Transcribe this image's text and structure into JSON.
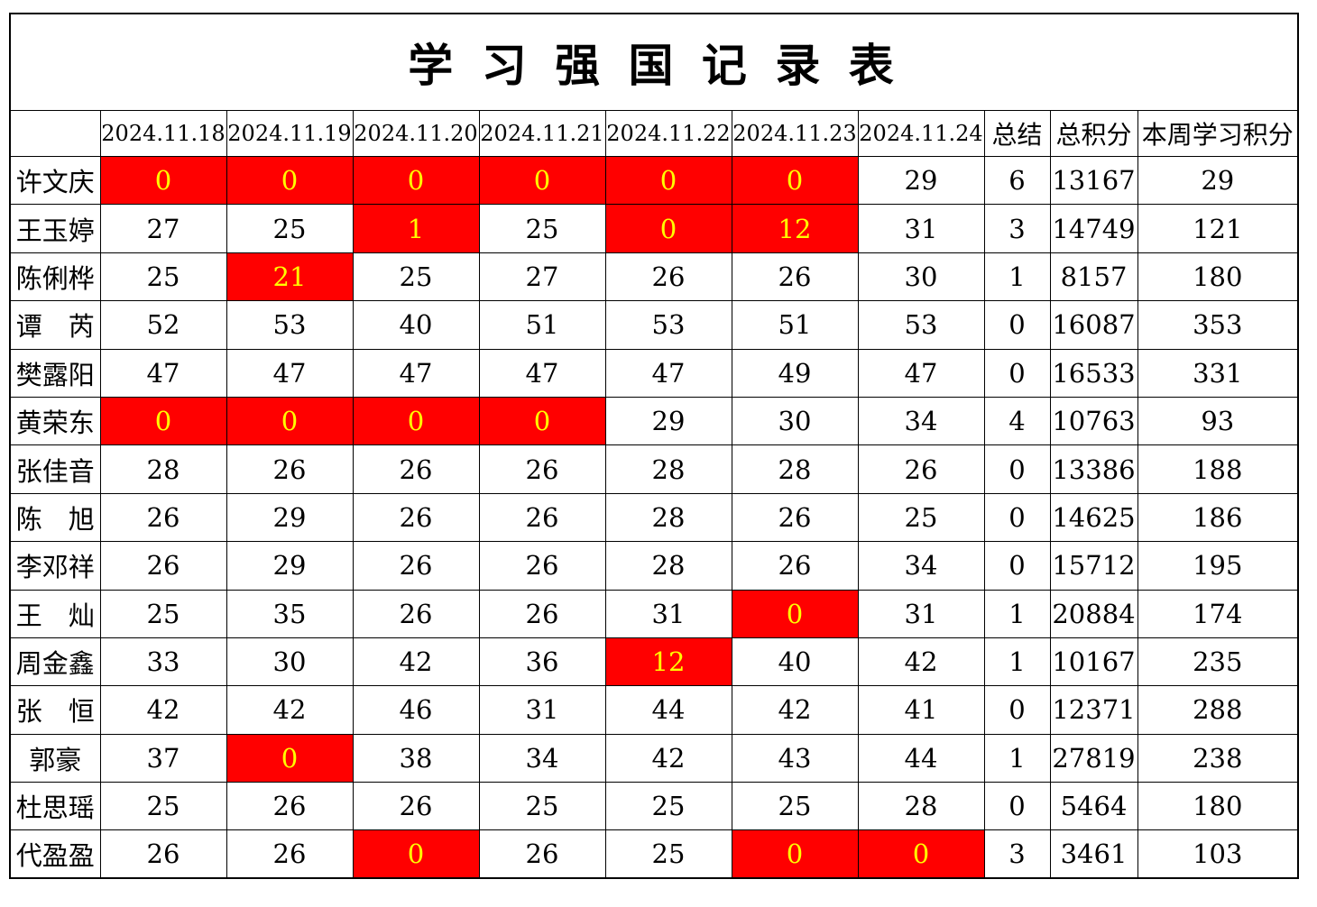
{
  "title": "学 习 强 国 记 录 表",
  "colors": {
    "highlight_background": "#FF0000",
    "highlight_text": "#FFFF00",
    "summary_text": "#FF0000",
    "body_text": "#000000",
    "grid_border": "#000000"
  },
  "table": {
    "corner_label": "",
    "date_headers": [
      "2024.11.18",
      "2024.11.19",
      "2024.11.20",
      "2024.11.21",
      "2024.11.22",
      "2024.11.23",
      "2024.11.24"
    ],
    "summary_headers": [
      "总结",
      "总积分",
      "本周学习积分"
    ],
    "rows": [
      {
        "name": "许文庆",
        "days": [
          0,
          0,
          0,
          0,
          0,
          0,
          29
        ],
        "red": [
          1,
          1,
          1,
          1,
          1,
          1,
          0
        ],
        "sum": 6,
        "total": 13167,
        "week": 29
      },
      {
        "name": "王玉婷",
        "days": [
          27,
          25,
          1,
          25,
          0,
          12,
          31
        ],
        "red": [
          0,
          0,
          1,
          0,
          1,
          1,
          0
        ],
        "sum": 3,
        "total": 14749,
        "week": 121
      },
      {
        "name": "陈俐桦",
        "days": [
          25,
          21,
          25,
          27,
          26,
          26,
          30
        ],
        "red": [
          0,
          1,
          0,
          0,
          0,
          0,
          0
        ],
        "sum": 1,
        "total": 8157,
        "week": 180
      },
      {
        "name": "谭　芮",
        "days": [
          52,
          53,
          40,
          51,
          53,
          51,
          53
        ],
        "red": [
          0,
          0,
          0,
          0,
          0,
          0,
          0
        ],
        "sum": 0,
        "total": 16087,
        "week": 353
      },
      {
        "name": "樊露阳",
        "days": [
          47,
          47,
          47,
          47,
          47,
          49,
          47
        ],
        "red": [
          0,
          0,
          0,
          0,
          0,
          0,
          0
        ],
        "sum": 0,
        "total": 16533,
        "week": 331
      },
      {
        "name": "黄荣东",
        "days": [
          0,
          0,
          0,
          0,
          29,
          30,
          34
        ],
        "red": [
          1,
          1,
          1,
          1,
          0,
          0,
          0
        ],
        "sum": 4,
        "total": 10763,
        "week": 93
      },
      {
        "name": "张佳音",
        "days": [
          28,
          26,
          26,
          26,
          28,
          28,
          26
        ],
        "red": [
          0,
          0,
          0,
          0,
          0,
          0,
          0
        ],
        "sum": 0,
        "total": 13386,
        "week": 188
      },
      {
        "name": "陈　旭",
        "days": [
          26,
          29,
          26,
          26,
          28,
          26,
          25
        ],
        "red": [
          0,
          0,
          0,
          0,
          0,
          0,
          0
        ],
        "sum": 0,
        "total": 14625,
        "week": 186
      },
      {
        "name": "李邓祥",
        "days": [
          26,
          29,
          26,
          26,
          28,
          26,
          34
        ],
        "red": [
          0,
          0,
          0,
          0,
          0,
          0,
          0
        ],
        "sum": 0,
        "total": 15712,
        "week": 195
      },
      {
        "name": "王　灿",
        "days": [
          25,
          35,
          26,
          26,
          31,
          0,
          31
        ],
        "red": [
          0,
          0,
          0,
          0,
          0,
          1,
          0
        ],
        "sum": 1,
        "total": 20884,
        "week": 174
      },
      {
        "name": "周金鑫",
        "days": [
          33,
          30,
          42,
          36,
          12,
          40,
          42
        ],
        "red": [
          0,
          0,
          0,
          0,
          1,
          0,
          0
        ],
        "sum": 1,
        "total": 10167,
        "week": 235
      },
      {
        "name": "张　恒",
        "days": [
          42,
          42,
          46,
          31,
          44,
          42,
          41
        ],
        "red": [
          0,
          0,
          0,
          0,
          0,
          0,
          0
        ],
        "sum": 0,
        "total": 12371,
        "week": 288
      },
      {
        "name": "郭豪",
        "days": [
          37,
          0,
          38,
          34,
          42,
          43,
          44
        ],
        "red": [
          0,
          1,
          0,
          0,
          0,
          0,
          0
        ],
        "sum": 1,
        "total": 27819,
        "week": 238
      },
      {
        "name": "杜思瑶",
        "days": [
          25,
          26,
          26,
          25,
          25,
          25,
          28
        ],
        "red": [
          0,
          0,
          0,
          0,
          0,
          0,
          0
        ],
        "sum": 0,
        "total": 5464,
        "week": 180
      },
      {
        "name": "代盈盈",
        "days": [
          26,
          26,
          0,
          26,
          25,
          0,
          0
        ],
        "red": [
          0,
          0,
          1,
          0,
          0,
          1,
          1
        ],
        "sum": 3,
        "total": 3461,
        "week": 103
      }
    ]
  }
}
